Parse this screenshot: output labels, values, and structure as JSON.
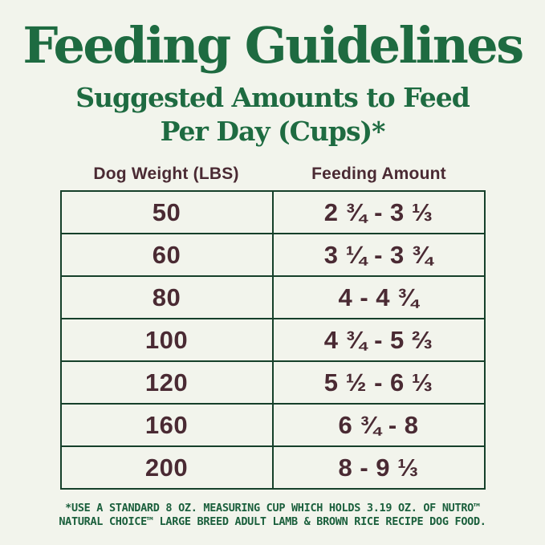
{
  "header": {
    "title": "Feeding Guidelines",
    "subtitle_line1": "Suggested Amounts to Feed",
    "subtitle_line2": "Per Day (Cups)*"
  },
  "chart_data": {
    "type": "table",
    "title": "Feeding Guidelines",
    "subtitle": "Suggested Amounts to Feed Per Day (Cups)*",
    "columns": [
      "Dog Weight (LBS)",
      "Feeding Amount"
    ],
    "rows": [
      [
        "50",
        "2 ¾ - 3 ⅓"
      ],
      [
        "60",
        "3 ¼ - 3 ¾"
      ],
      [
        "80",
        "4 - 4 ¾"
      ],
      [
        "100",
        "4 ¾ - 5 ⅔"
      ],
      [
        "120",
        "5 ½ - 6 ⅓"
      ],
      [
        "160",
        "6 ¾ - 8"
      ],
      [
        "200",
        "8 - 9 ⅓"
      ]
    ],
    "footnote": "*USE A STANDARD 8 OZ. MEASURING CUP WHICH HOLDS 3.19 OZ. OF NUTRO™ NATURAL CHOICE™ LARGE BREED ADULT LAMB & BROWN RICE RECIPE DOG FOOD."
  },
  "footnote": {
    "line1": "*USE A STANDARD 8 OZ. MEASURING CUP WHICH HOLDS 3.19 OZ. OF NUTRO™",
    "line2": "NATURAL CHOICE™ LARGE BREED ADULT LAMB & BROWN RICE RECIPE DOG FOOD."
  },
  "colors": {
    "background": "#f2f4ec",
    "heading_green": "#1e6b41",
    "table_border_green": "#16402a",
    "cell_text_brown": "#4a2a33",
    "footnote_green": "#1a5f3c"
  }
}
